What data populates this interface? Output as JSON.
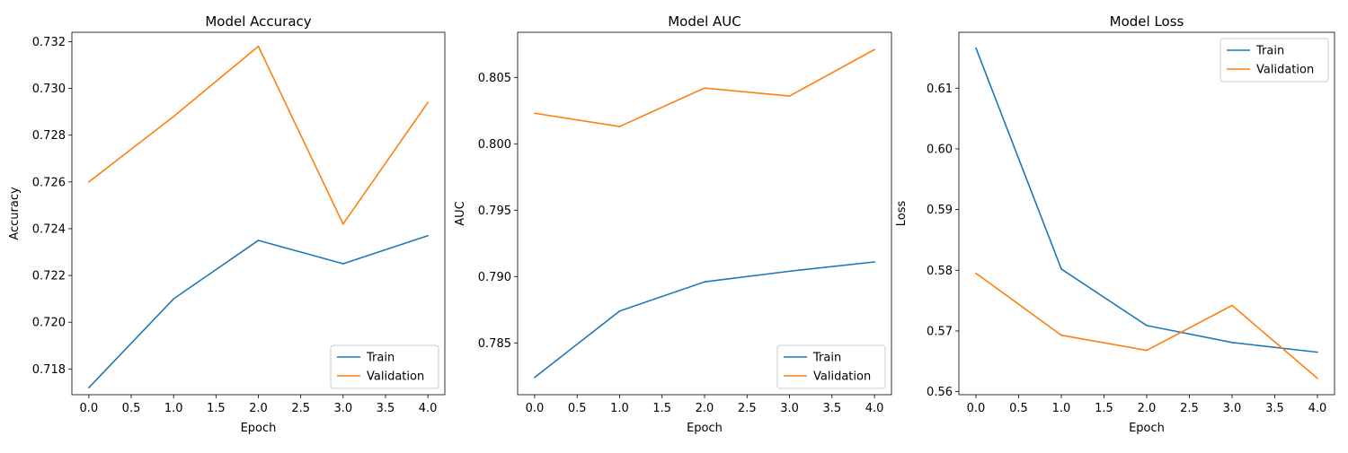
{
  "colors": {
    "train": "#1f77b4",
    "validation": "#ff7f0e"
  },
  "chart_data": [
    {
      "type": "line",
      "title": "Model Accuracy",
      "xlabel": "Epoch",
      "ylabel": "Accuracy",
      "x": [
        0,
        1,
        2,
        3,
        4
      ],
      "xlim": [
        -0.2,
        4.2
      ],
      "ylim": [
        0.7169,
        0.7324
      ],
      "xticks": [
        "0.0",
        "0.5",
        "1.0",
        "1.5",
        "2.0",
        "2.5",
        "3.0",
        "3.5",
        "4.0"
      ],
      "yticks": [
        "0.718",
        "0.720",
        "0.722",
        "0.724",
        "0.726",
        "0.728",
        "0.730",
        "0.732"
      ],
      "legend": "lower-right",
      "grid": false,
      "series": [
        {
          "name": "Train",
          "values": [
            0.7172,
            0.721,
            0.7235,
            0.7225,
            0.7237
          ]
        },
        {
          "name": "Validation",
          "values": [
            0.726,
            0.7288,
            0.7318,
            0.7242,
            0.7294
          ]
        }
      ]
    },
    {
      "type": "line",
      "title": "Model AUC",
      "xlabel": "Epoch",
      "ylabel": "AUC",
      "x": [
        0,
        1,
        2,
        3,
        4
      ],
      "xlim": [
        -0.2,
        4.2
      ],
      "ylim": [
        0.7811,
        0.8084
      ],
      "xticks": [
        "0.0",
        "0.5",
        "1.0",
        "1.5",
        "2.0",
        "2.5",
        "3.0",
        "3.5",
        "4.0"
      ],
      "yticks": [
        "0.785",
        "0.790",
        "0.795",
        "0.800",
        "0.805"
      ],
      "legend": "lower-right",
      "grid": false,
      "series": [
        {
          "name": "Train",
          "values": [
            0.7824,
            0.7874,
            0.7896,
            0.7904,
            0.7911
          ]
        },
        {
          "name": "Validation",
          "values": [
            0.8023,
            0.8013,
            0.8042,
            0.8036,
            0.8071
          ]
        }
      ]
    },
    {
      "type": "line",
      "title": "Model Loss",
      "xlabel": "Epoch",
      "ylabel": "Loss",
      "x": [
        0,
        1,
        2,
        3,
        4
      ],
      "xlim": [
        -0.2,
        4.2
      ],
      "ylim": [
        0.5595,
        0.6192
      ],
      "xticks": [
        "0.0",
        "0.5",
        "1.0",
        "1.5",
        "2.0",
        "2.5",
        "3.0",
        "3.5",
        "4.0"
      ],
      "yticks": [
        "0.56",
        "0.57",
        "0.58",
        "0.59",
        "0.60",
        "0.61"
      ],
      "legend": "upper-right",
      "grid": false,
      "series": [
        {
          "name": "Train",
          "values": [
            0.6166,
            0.5802,
            0.5709,
            0.5681,
            0.5665
          ]
        },
        {
          "name": "Validation",
          "values": [
            0.5795,
            0.5693,
            0.5668,
            0.5742,
            0.5622
          ]
        }
      ]
    }
  ]
}
